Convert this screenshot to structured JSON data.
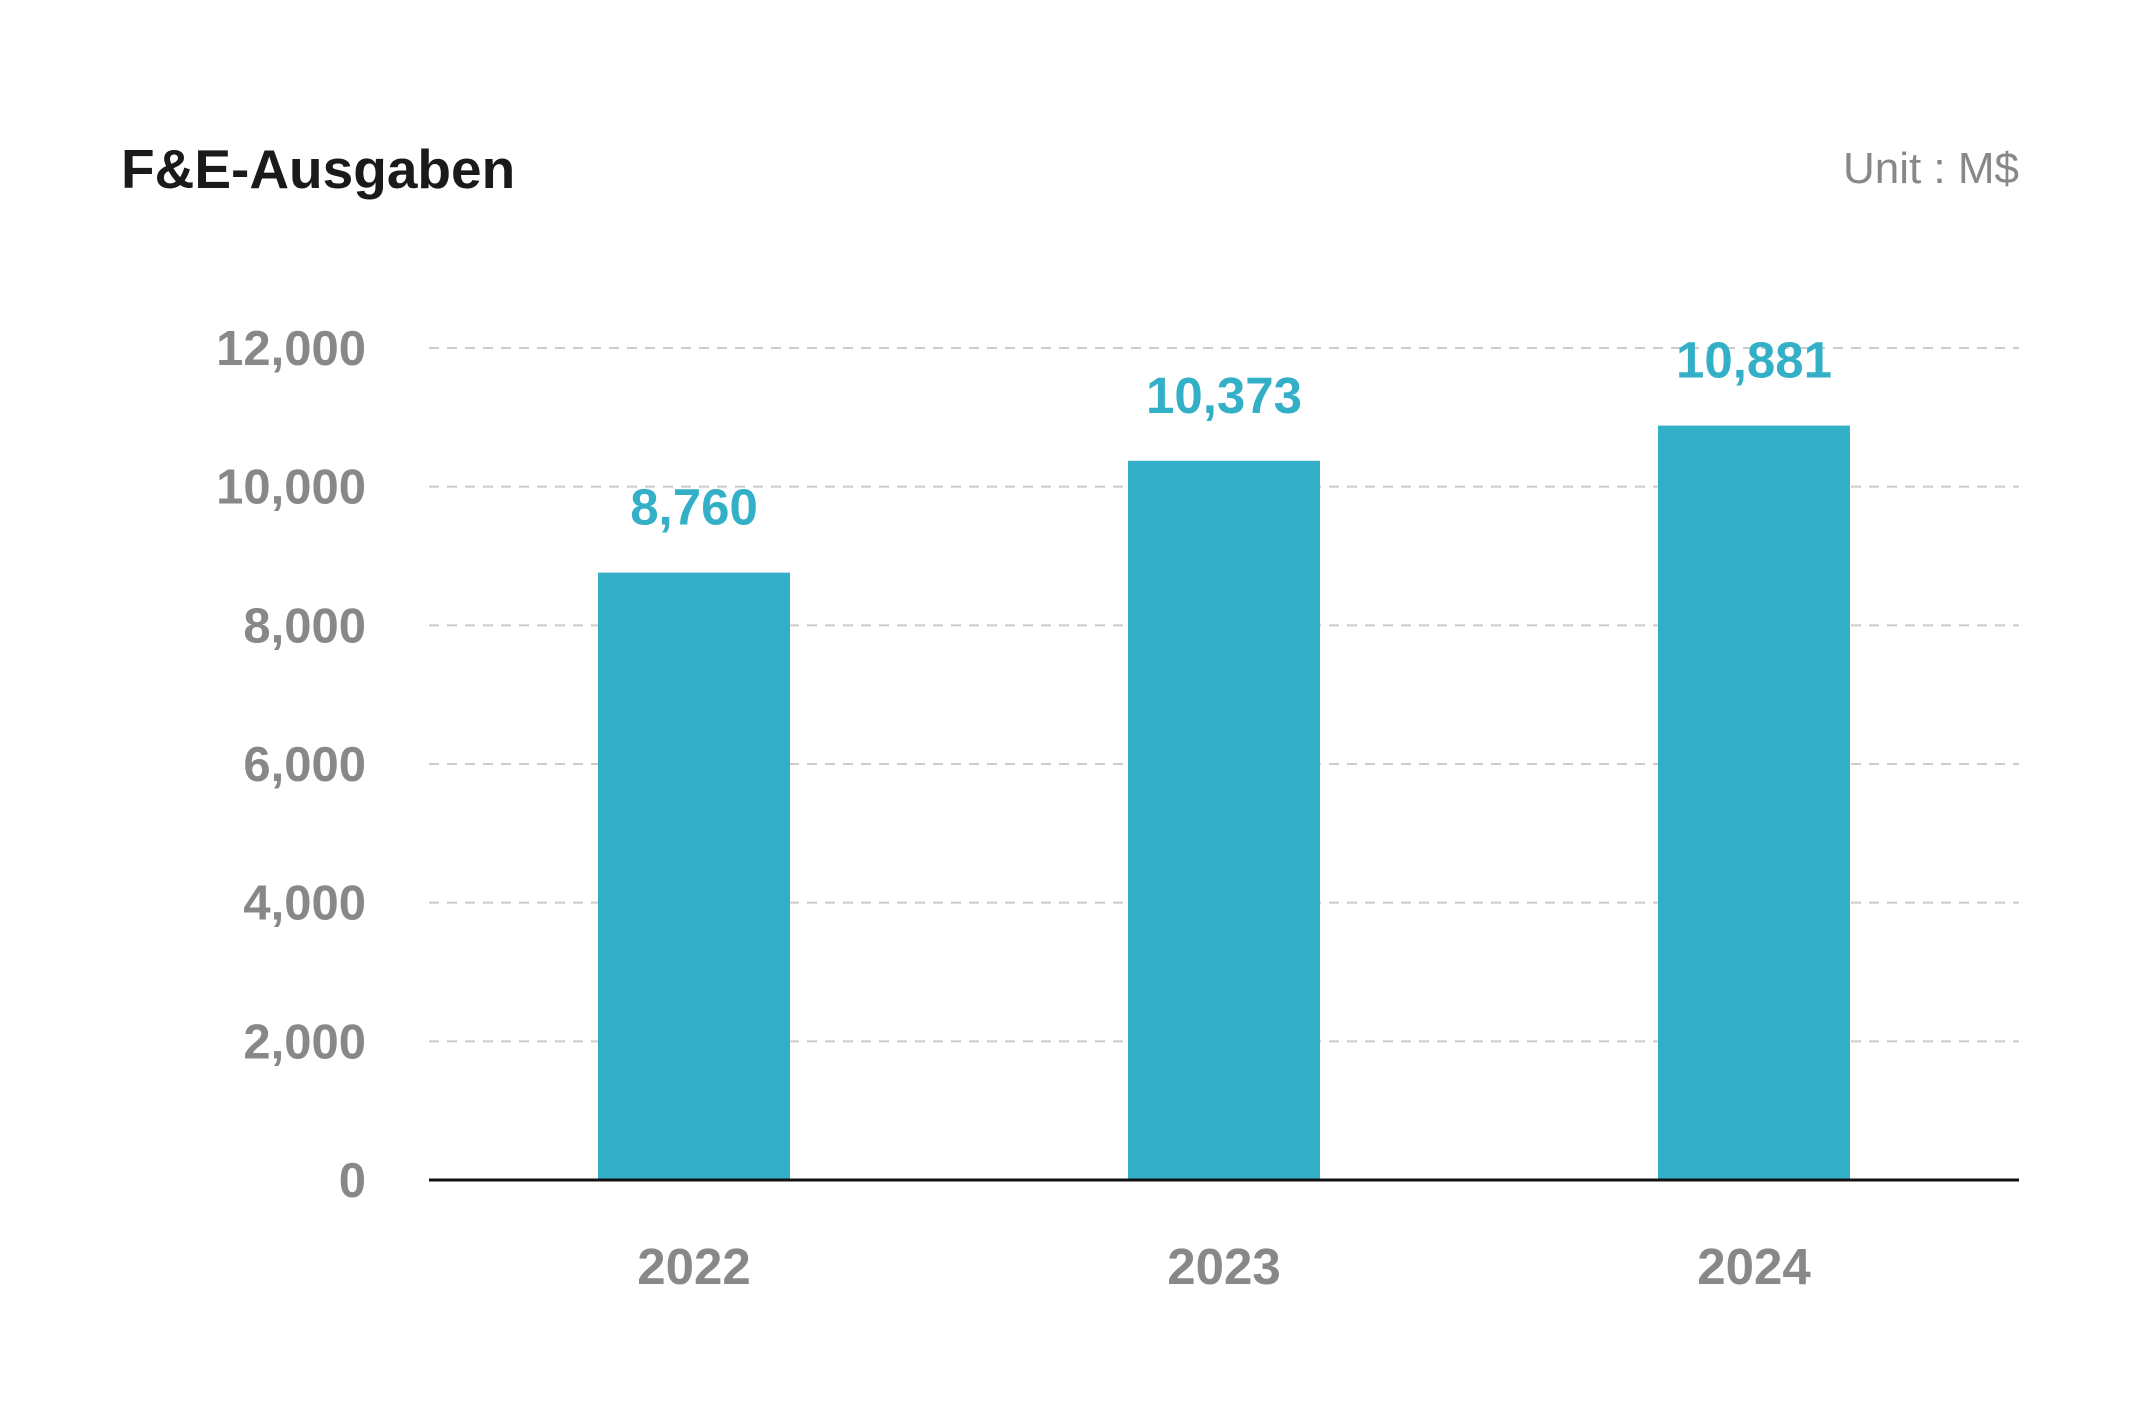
{
  "chart_data": {
    "type": "bar",
    "title": "F&E-Ausgaben",
    "unit_label": "Unit : M$",
    "categories": [
      "2022",
      "2023",
      "2024"
    ],
    "values": [
      8760,
      10373,
      10881
    ],
    "data_labels": [
      "8,760",
      "10,373",
      "10,881"
    ],
    "ylim": [
      0,
      12000
    ],
    "yticks": [
      0,
      2000,
      4000,
      6000,
      8000,
      10000,
      12000
    ],
    "ytick_labels": [
      "0",
      "2,000",
      "4,000",
      "6,000",
      "8,000",
      "10,000",
      "12,000"
    ],
    "grid": "horizontal dashed",
    "legend": "none",
    "colors": {
      "bar": "#33b0c7",
      "label": "#33b0c7",
      "title": "#1a1a1a",
      "axis_text": "#888888",
      "grid": "#cccccc",
      "axis": "#111111"
    }
  }
}
